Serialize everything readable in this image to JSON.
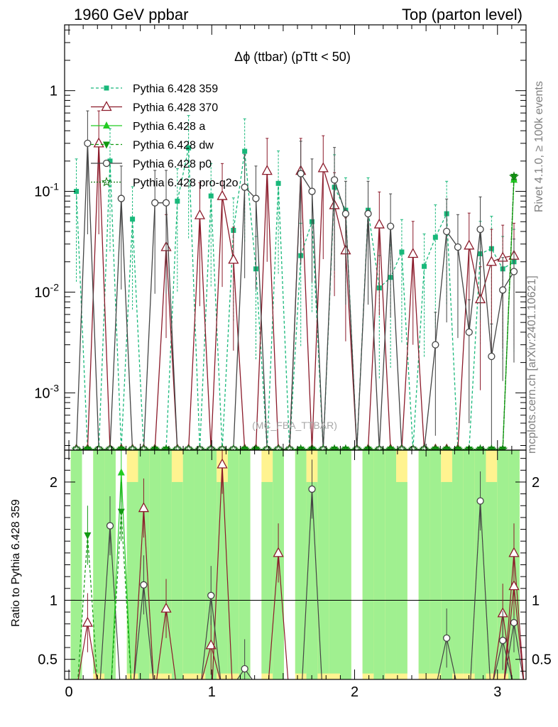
{
  "header": {
    "left": "1960 GeV ppbar",
    "right": "Top (parton level)"
  },
  "side_labels": {
    "rivet": "Rivet 4.1.0, ≥ 100k events",
    "mcplots": "mcplots.cern.ch [arXiv:2401.10621]"
  },
  "watermark": "(MC_FBA_TTBAR)",
  "colors": {
    "p359": "#18b87a",
    "p370": "#8b1a2a",
    "a": "#22cc22",
    "dw": "#119911",
    "p0": "#444444",
    "proq2o": "#117711",
    "band_green": "#a0f090",
    "band_yellow": "#fff390"
  },
  "chart_data": {
    "type": "line",
    "title": "Δϕ (ttbar) (pTtt < 50)",
    "xlabel": "",
    "ylabel_main": "",
    "ylabel_ratio": "Ratio to Pythia 6.428 359",
    "xlim": [
      -0.03,
      3.2
    ],
    "ylim_main": [
      0.00027,
      4.5
    ],
    "ylim_ratio": [
      0.33,
      2.27
    ],
    "yscale_main": "log",
    "x_ticks": [
      "0",
      "1",
      "2",
      "3"
    ],
    "y_ticks_main": [
      "1",
      "10^-1",
      "10^-2",
      "10^-3"
    ],
    "y_ticks_ratio": [
      "0.5",
      "1",
      "2"
    ],
    "legend_position": "top-left",
    "x": [
      0.0524,
      0.1309,
      0.2094,
      0.288,
      0.3665,
      0.4451,
      0.5236,
      0.6021,
      0.6807,
      0.7592,
      0.8378,
      0.9163,
      0.9948,
      1.0734,
      1.1519,
      1.2305,
      1.309,
      1.3875,
      1.4661,
      1.5446,
      1.6232,
      1.7017,
      1.7802,
      1.8588,
      1.9373,
      2.0159,
      2.0944,
      2.1729,
      2.2515,
      2.33,
      2.4086,
      2.4871,
      2.5656,
      2.6442,
      2.7227,
      2.8013,
      2.8798,
      2.9583,
      3.0369,
      3.1154
    ],
    "series": [
      {
        "name": "Pythia 6.428 359",
        "key": "p359",
        "style": "dashed",
        "marker": "square",
        "values": [
          0.1,
          0.0,
          0.0,
          0.2,
          0.0,
          0.053,
          0.0,
          0.0,
          0.0,
          0.08,
          0.27,
          0.0,
          0.09,
          0.0,
          0.041,
          0.25,
          0.017,
          0.0,
          0.12,
          0.0,
          0.023,
          0.05,
          0.0,
          0.11,
          0.065,
          0.0,
          0.065,
          0.011,
          0.014,
          0.025,
          0.0,
          0.018,
          0.035,
          0.06,
          0.0,
          0.0,
          0.024,
          0.027,
          0.017,
          0.02
        ]
      },
      {
        "name": "Pythia 6.428 370",
        "key": "p370",
        "style": "solid",
        "marker": "open-triangle",
        "values": [
          0.0,
          0.0,
          0.3,
          0.0,
          0.0,
          0.0,
          0.0,
          0.0,
          0.028,
          0.0,
          0.0,
          0.058,
          0.0,
          0.09,
          0.021,
          0.0,
          0.0,
          0.16,
          0.0,
          0.0,
          0.16,
          0.0,
          0.17,
          0.073,
          0.026,
          0.0,
          0.0,
          0.047,
          0.0,
          0.0,
          0.024,
          0.0,
          0.0,
          0.0,
          0.0,
          0.029,
          0.0085,
          0.02,
          0.022,
          0.023
        ]
      },
      {
        "name": "Pythia 6.428 a",
        "key": "a",
        "style": "solid",
        "marker": "triangle",
        "values": [
          0,
          0,
          0,
          0,
          0,
          0,
          0,
          0,
          0,
          0,
          0,
          0,
          0,
          0,
          0,
          0,
          0,
          0,
          0,
          0,
          0,
          0,
          0,
          0,
          0,
          0,
          0,
          0,
          0,
          0,
          0,
          0,
          0,
          0,
          0,
          0,
          0,
          0,
          0,
          0.13
        ]
      },
      {
        "name": "Pythia 6.428 dw",
        "key": "dw",
        "style": "dashed",
        "marker": "down-triangle",
        "values": [
          0,
          0,
          0,
          0,
          0,
          0,
          0,
          0,
          0,
          0,
          0,
          0,
          0,
          0,
          0,
          0,
          0,
          0,
          0,
          0,
          0,
          0,
          0,
          0,
          0,
          0,
          0,
          0,
          0,
          0,
          0,
          0,
          0,
          0,
          0,
          0,
          0,
          0,
          0,
          0.14
        ]
      },
      {
        "name": "Pythia 6.428 p0",
        "key": "p0",
        "style": "solid",
        "marker": "open-circle",
        "values": [
          0.0,
          0.3,
          0.0,
          0.0,
          0.085,
          0.0,
          0.0,
          0.077,
          0.077,
          0.0,
          0.0,
          0.0,
          0.0,
          0.0,
          0.0,
          0.11,
          0.085,
          0.0,
          0.0,
          0.0,
          0.15,
          0.1,
          0.0,
          0.13,
          0.06,
          0.0,
          0.06,
          0.0,
          0.045,
          0.0,
          0.0,
          0.0,
          0.003,
          0.04,
          0.028,
          0.004,
          0.042,
          0.0023,
          0.0105,
          0.016
        ]
      },
      {
        "name": "Pythia 6.428 pro-q2o",
        "key": "proq2o",
        "style": "dotted",
        "marker": "star",
        "values": [
          0,
          0,
          0,
          0,
          0,
          0,
          0,
          0,
          0,
          0,
          0,
          0,
          0,
          0,
          0,
          0,
          0,
          0,
          0,
          0,
          0,
          0,
          0,
          0,
          0,
          0,
          0,
          0,
          0,
          0,
          0,
          0,
          0,
          0,
          0,
          0,
          0,
          0,
          0,
          0.14
        ]
      }
    ],
    "ratio_series": [
      {
        "key": "p370",
        "values": [
          null,
          0.81,
          null,
          null,
          null,
          null,
          1.78,
          null,
          0.93,
          null,
          null,
          null,
          0.62,
          2.15,
          null,
          null,
          null,
          null,
          1.4,
          null,
          null,
          null,
          null,
          null,
          null,
          null,
          null,
          null,
          null,
          null,
          null,
          null,
          null,
          null,
          null,
          null,
          null,
          null,
          0.89,
          1.4
        ]
      },
      {
        "key": "p0",
        "values": [
          null,
          null,
          null,
          1.63,
          null,
          null,
          1.13,
          null,
          null,
          null,
          null,
          null,
          1.04,
          null,
          null,
          0.42,
          null,
          null,
          null,
          null,
          null,
          1.94,
          null,
          null,
          null,
          null,
          null,
          null,
          null,
          null,
          null,
          null,
          null,
          0.68,
          null,
          null,
          1.84,
          null,
          0.66,
          0.81
        ]
      },
      {
        "key": "a",
        "values": [
          null,
          null,
          null,
          null,
          2.08,
          null,
          null,
          null,
          null,
          null,
          null,
          null,
          null,
          null,
          null,
          null,
          null,
          null,
          null,
          null,
          null,
          null,
          null,
          null,
          null,
          null,
          null,
          null,
          null,
          null,
          null,
          null,
          null,
          null,
          null,
          null,
          null,
          null,
          null,
          null
        ]
      },
      {
        "key": "dw",
        "values": [
          null,
          1.55,
          null,
          null,
          1.75,
          null,
          null,
          null,
          null,
          null,
          null,
          null,
          null,
          null,
          null,
          null,
          null,
          null,
          null,
          null,
          null,
          null,
          null,
          null,
          null,
          null,
          null,
          null,
          null,
          null,
          null,
          null,
          null,
          null,
          null,
          null,
          null,
          null,
          null,
          null
        ]
      },
      {
        "key": "p370b",
        "values": [
          null,
          null,
          null,
          null,
          null,
          null,
          null,
          null,
          null,
          null,
          null,
          null,
          null,
          null,
          null,
          null,
          null,
          null,
          null,
          null,
          null,
          null,
          null,
          null,
          null,
          null,
          null,
          null,
          null,
          null,
          null,
          null,
          null,
          null,
          null,
          null,
          null,
          null,
          null,
          1.12
        ]
      }
    ]
  }
}
